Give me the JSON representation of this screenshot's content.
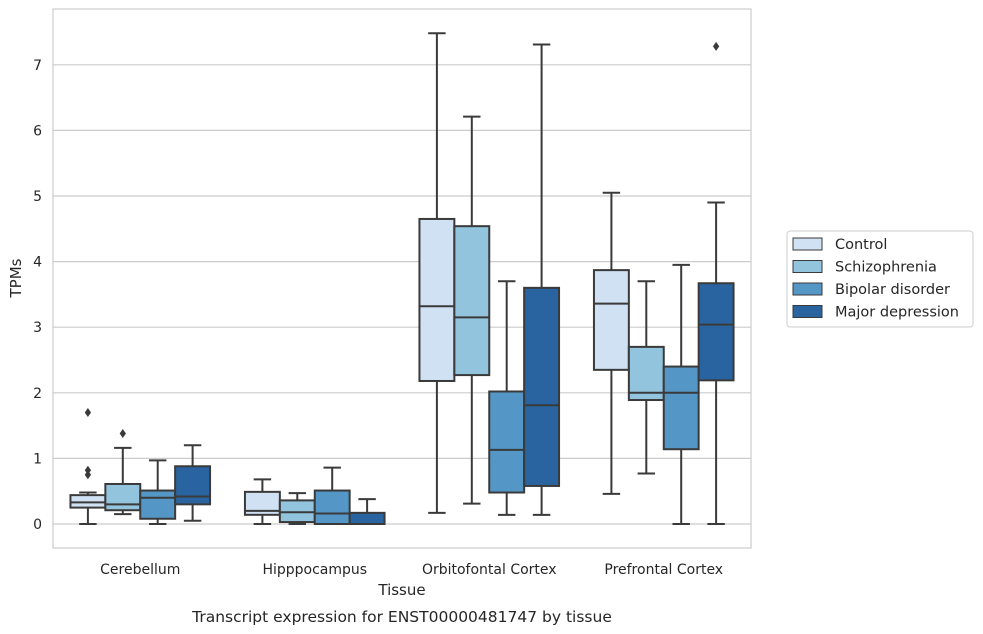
{
  "chart_data": {
    "type": "box",
    "caption": "Transcript expression for ENST00000481747 by tissue",
    "xlabel": "Tissue",
    "ylabel": "TPMs",
    "ylim": [
      -0.35,
      7.9
    ],
    "yticks": [
      0,
      1,
      2,
      3,
      4,
      5,
      6,
      7
    ],
    "grid": "horizontal",
    "legend_position": "right",
    "categories": [
      "Cerebellum",
      "Hipppocampus",
      "Orbitofontal Cortex",
      "Prefrontal Cortex"
    ],
    "series": [
      {
        "name": "Control",
        "color": "#cfe1f2",
        "boxes": [
          {
            "min": 0.0,
            "q1": 0.25,
            "median": 0.33,
            "q3": 0.44,
            "max": 0.48,
            "outliers": [
              0.75,
              0.82,
              1.7
            ]
          },
          {
            "min": 0.0,
            "q1": 0.14,
            "median": 0.2,
            "q3": 0.49,
            "max": 0.68,
            "outliers": []
          },
          {
            "min": 0.17,
            "q1": 2.18,
            "median": 3.32,
            "q3": 4.65,
            "max": 7.48,
            "outliers": []
          },
          {
            "min": 0.46,
            "q1": 2.35,
            "median": 3.36,
            "q3": 3.87,
            "max": 5.05,
            "outliers": []
          }
        ]
      },
      {
        "name": "Schizophrenia",
        "color": "#93c4de",
        "boxes": [
          {
            "min": 0.15,
            "q1": 0.21,
            "median": 0.3,
            "q3": 0.61,
            "max": 1.16,
            "outliers": [
              1.38
            ]
          },
          {
            "min": 0.0,
            "q1": 0.03,
            "median": 0.18,
            "q3": 0.36,
            "max": 0.47,
            "outliers": []
          },
          {
            "min": 0.31,
            "q1": 2.27,
            "median": 3.15,
            "q3": 4.54,
            "max": 6.21,
            "outliers": []
          },
          {
            "min": 0.77,
            "q1": 1.89,
            "median": 2.0,
            "q3": 2.7,
            "max": 3.7,
            "outliers": []
          }
        ]
      },
      {
        "name": "Bipolar disorder",
        "color": "#5497c6",
        "boxes": [
          {
            "min": 0.0,
            "q1": 0.08,
            "median": 0.4,
            "q3": 0.51,
            "max": 0.97,
            "outliers": []
          },
          {
            "min": 0.0,
            "q1": 0.0,
            "median": 0.16,
            "q3": 0.51,
            "max": 0.86,
            "outliers": []
          },
          {
            "min": 0.14,
            "q1": 0.48,
            "median": 1.13,
            "q3": 2.02,
            "max": 3.7,
            "outliers": []
          },
          {
            "min": 0.0,
            "q1": 1.14,
            "median": 2.0,
            "q3": 2.4,
            "max": 3.95,
            "outliers": []
          }
        ]
      },
      {
        "name": "Major depression",
        "color": "#2a64a0",
        "boxes": [
          {
            "min": 0.05,
            "q1": 0.3,
            "median": 0.42,
            "q3": 0.88,
            "max": 1.2,
            "outliers": []
          },
          {
            "min": 0.0,
            "q1": 0.0,
            "median": 0.0,
            "q3": 0.17,
            "max": 0.38,
            "outliers": []
          },
          {
            "min": 0.14,
            "q1": 0.58,
            "median": 1.81,
            "q3": 3.6,
            "max": 7.31,
            "outliers": []
          },
          {
            "min": 0.0,
            "q1": 2.19,
            "median": 3.04,
            "q3": 3.67,
            "max": 4.9,
            "outliers": [
              7.28
            ]
          }
        ]
      }
    ]
  }
}
